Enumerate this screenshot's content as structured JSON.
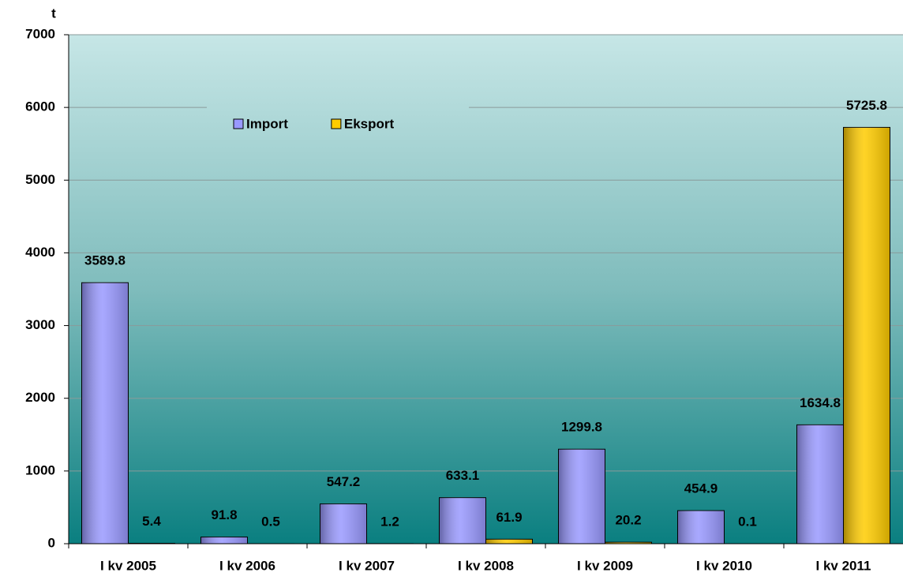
{
  "chart_data": {
    "type": "bar",
    "y_label": "t",
    "categories": [
      "I kv 2005",
      "I kv 2006",
      "I kv 2007",
      "I kv 2008",
      "I kv 2009",
      "I kv 2010",
      "I kv 2011"
    ],
    "series": [
      {
        "name": "Import",
        "color": "#9999ff",
        "values": [
          3589.8,
          91.8,
          547.2,
          633.1,
          1299.8,
          454.9,
          1634.8
        ]
      },
      {
        "name": "Eksport",
        "color": "#ffcc00",
        "values": [
          5.4,
          0.5,
          1.2,
          61.9,
          20.2,
          0.1,
          5725.8
        ]
      }
    ],
    "ylim": [
      0,
      7000
    ],
    "yticks": [
      0,
      1000,
      2000,
      3000,
      4000,
      5000,
      6000,
      7000
    ],
    "grid": true,
    "legend": "top"
  }
}
